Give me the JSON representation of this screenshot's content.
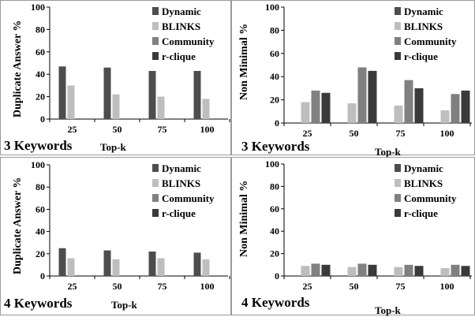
{
  "colors": {
    "Dynamic": "#4d4d4d",
    "BLINKS": "#bebebe",
    "Community": "#808080",
    "r-clique": "#3a3a3a"
  },
  "chart_data": [
    {
      "type": "bar",
      "categories": [
        "25",
        "50",
        "75",
        "100"
      ],
      "series": [
        {
          "name": "Dynamic",
          "values": [
            47,
            46,
            43,
            43
          ]
        },
        {
          "name": "BLINKS",
          "values": [
            30,
            22,
            20,
            18
          ]
        }
      ],
      "legend": [
        "Dynamic",
        "BLINKS",
        "Community",
        "r-clique"
      ],
      "legend_position": "top-right",
      "ylabel": "Duplicate Answer %",
      "xlabel": "Top-k",
      "caption": "3 Keywords",
      "ylim": [
        0,
        100
      ],
      "yticks": [
        0,
        20,
        40,
        60,
        80,
        100
      ]
    },
    {
      "type": "bar",
      "categories": [
        "25",
        "50",
        "75",
        "100"
      ],
      "series": [
        {
          "name": "Dynamic",
          "values": [
            0,
            0,
            0,
            0
          ]
        },
        {
          "name": "BLINKS",
          "values": [
            18,
            17,
            15,
            11
          ]
        },
        {
          "name": "Community",
          "values": [
            28,
            48,
            37,
            25
          ]
        },
        {
          "name": "r-clique",
          "values": [
            26,
            45,
            30,
            28
          ]
        }
      ],
      "legend": [
        "Dynamic",
        "BLINKS",
        "Community",
        "r-clique"
      ],
      "legend_position": "top-right",
      "ylabel": "Non Minimal %",
      "xlabel": "Top-k",
      "caption": "3 Keywords",
      "ylim": [
        0,
        100
      ],
      "yticks": [
        0,
        20,
        40,
        60,
        80,
        100
      ]
    },
    {
      "type": "bar",
      "categories": [
        "25",
        "50",
        "75",
        "100"
      ],
      "series": [
        {
          "name": "Dynamic",
          "values": [
            25,
            23,
            22,
            21
          ]
        },
        {
          "name": "BLINKS",
          "values": [
            16,
            15,
            16,
            15
          ]
        }
      ],
      "legend": [
        "Dynamic",
        "BLINKS",
        "Community",
        "r-clique"
      ],
      "legend_position": "top-right",
      "ylabel": "Duplicate Answer %",
      "xlabel": "Top-k",
      "caption": "4 Keywords",
      "ylim": [
        0,
        100
      ],
      "yticks": [
        0,
        20,
        40,
        60,
        80,
        100
      ]
    },
    {
      "type": "bar",
      "categories": [
        "25",
        "50",
        "75",
        "100"
      ],
      "series": [
        {
          "name": "Dynamic",
          "values": [
            0,
            0,
            0,
            0
          ]
        },
        {
          "name": "BLINKS",
          "values": [
            9,
            8,
            8,
            7
          ]
        },
        {
          "name": "Community",
          "values": [
            11,
            11,
            10,
            10
          ]
        },
        {
          "name": "r-clique",
          "values": [
            10,
            10,
            9,
            9
          ]
        }
      ],
      "legend": [
        "Dynamic",
        "BLINKS",
        "Community",
        "r-clique"
      ],
      "legend_position": "top-right",
      "ylabel": "Non Minimal %",
      "xlabel": "Top-k",
      "caption": "4 Keywords",
      "ylim": [
        0,
        100
      ],
      "yticks": [
        0,
        20,
        40,
        60,
        80,
        100
      ]
    }
  ]
}
